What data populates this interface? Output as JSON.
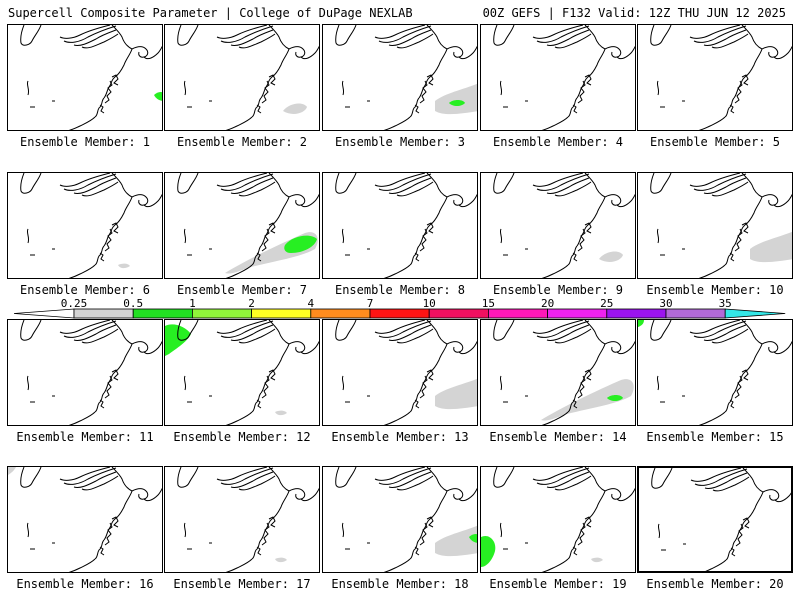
{
  "header": {
    "left_title": "Supercell Composite Parameter | College of DuPage NEXLAB",
    "right_title": "00Z GEFS | F132 Valid: 12Z THU JUN 12 2025"
  },
  "colors": {
    "light": "#d4d4d4",
    "green": "#27ef22",
    "outline": "#000000"
  },
  "legend": {
    "ticks": [
      "0.25",
      "0.5",
      "1",
      "2",
      "4",
      "7",
      "10",
      "15",
      "20",
      "25",
      "30",
      "35"
    ],
    "colors": [
      "#ffffff",
      "#d3d3d3",
      "#22e022",
      "#91f53a",
      "#ffff23",
      "#ff8c1e",
      "#ff1414",
      "#f01060",
      "#ff18b8",
      "#ee22ee",
      "#9b14ee",
      "#b26ad8",
      "#33e8e8"
    ]
  },
  "members": [
    {
      "label": "Ensemble Member: 1",
      "icon": "map-panel",
      "blobs": [
        "green-edge-east"
      ]
    },
    {
      "label": "Ensemble Member: 2",
      "icon": "map-panel",
      "blobs": [
        "gray-mid"
      ]
    },
    {
      "label": "Ensemble Member: 3",
      "icon": "map-panel",
      "blobs": [
        "gray-east",
        "green-small"
      ]
    },
    {
      "label": "Ensemble Member: 4",
      "icon": "map-panel",
      "blobs": []
    },
    {
      "label": "Ensemble Member: 5",
      "icon": "map-panel",
      "blobs": []
    },
    {
      "label": "Ensemble Member: 6",
      "icon": "map-panel",
      "blobs": [
        "gray-dot"
      ]
    },
    {
      "label": "Ensemble Member: 7",
      "icon": "map-panel",
      "blobs": [
        "gray-wide",
        "green-center"
      ]
    },
    {
      "label": "Ensemble Member: 8",
      "icon": "map-panel",
      "blobs": []
    },
    {
      "label": "Ensemble Member: 9",
      "icon": "map-panel",
      "blobs": [
        "gray-mid"
      ]
    },
    {
      "label": "Ensemble Member: 10",
      "icon": "map-panel",
      "blobs": [
        "gray-east"
      ]
    },
    {
      "label": "Ensemble Member: 11",
      "icon": "map-panel",
      "blobs": []
    },
    {
      "label": "Ensemble Member: 12",
      "icon": "map-panel",
      "blobs": [
        "green-northwest",
        "gray-dot"
      ]
    },
    {
      "label": "Ensemble Member: 13",
      "icon": "map-panel",
      "blobs": [
        "gray-east"
      ]
    },
    {
      "label": "Ensemble Member: 14",
      "icon": "map-panel",
      "blobs": [
        "gray-wide",
        "green-small"
      ]
    },
    {
      "label": "Ensemble Member: 15",
      "icon": "map-panel",
      "blobs": [
        "green-corner"
      ]
    },
    {
      "label": "Ensemble Member: 16",
      "icon": "map-panel",
      "blobs": [
        "gray-corner"
      ]
    },
    {
      "label": "Ensemble Member: 17",
      "icon": "map-panel",
      "blobs": [
        "gray-dot"
      ]
    },
    {
      "label": "Ensemble Member: 18",
      "icon": "map-panel",
      "blobs": [
        "gray-east",
        "green-edge-east"
      ]
    },
    {
      "label": "Ensemble Member: 19",
      "icon": "map-panel",
      "blobs": [
        "green-southwest",
        "gray-dot"
      ]
    },
    {
      "label": "Ensemble Member: 20",
      "icon": "map-panel",
      "blobs": []
    }
  ]
}
